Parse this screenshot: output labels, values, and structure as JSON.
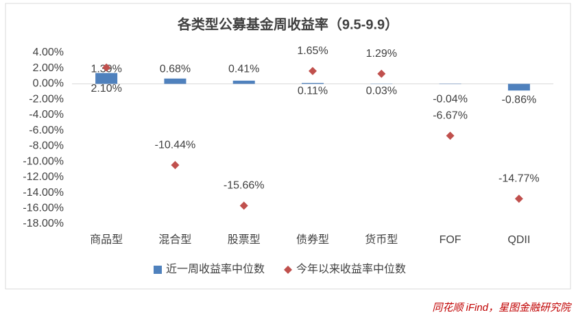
{
  "chart_data": {
    "type": "bar_marker",
    "title": "各类型公募基金周收益率（9.5-9.9）",
    "categories": [
      "商品型",
      "混合型",
      "股票型",
      "债券型",
      "货币型",
      "FOF",
      "QDII"
    ],
    "series": [
      {
        "name": "近一周收益率中位数",
        "color": "#4f81bd",
        "type": "bar",
        "values": [
          1.39,
          0.68,
          0.41,
          0.11,
          0.03,
          -0.04,
          -0.86
        ],
        "value_labels": [
          "1.39%",
          "0.68%",
          "0.41%",
          "0.11%",
          "0.03%",
          "-0.04%",
          "-0.86%"
        ]
      },
      {
        "name": "今年以来收益率中位数",
        "color": "#c0504d",
        "type": "marker",
        "values": [
          2.1,
          -10.44,
          -15.66,
          1.65,
          1.29,
          -6.67,
          -14.77
        ],
        "value_labels": [
          "2.10%",
          "-10.44%",
          "-15.66%",
          "1.65%",
          "1.29%",
          "-6.67%",
          "-14.77%"
        ]
      }
    ],
    "ylim": [
      -18,
      4
    ],
    "yticks": [
      {
        "value": 4,
        "label": "4.00%"
      },
      {
        "value": 2,
        "label": "2.00%"
      },
      {
        "value": 0,
        "label": "0.00%"
      },
      {
        "value": -2,
        "label": "-2.00%"
      },
      {
        "value": -4,
        "label": "-4.00%"
      },
      {
        "value": -6,
        "label": "-6.00%"
      },
      {
        "value": -8,
        "label": "-8.00%"
      },
      {
        "value": -10,
        "label": "-10.00%"
      },
      {
        "value": -12,
        "label": "-12.00%"
      },
      {
        "value": -14,
        "label": "-14.00%"
      },
      {
        "value": -16,
        "label": "-16.00%"
      },
      {
        "value": -18,
        "label": "-18.00%"
      }
    ],
    "source": "同花顺 iFind，星图金融研究院"
  }
}
